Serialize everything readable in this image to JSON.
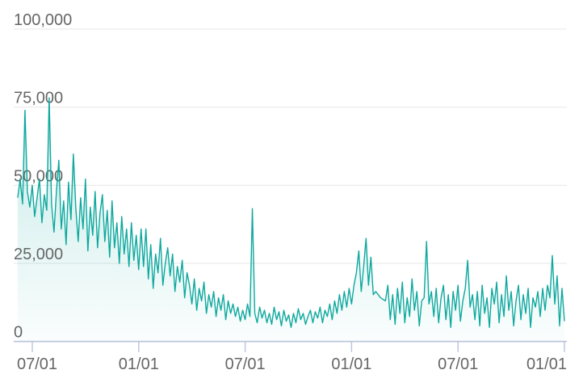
{
  "chart_data": {
    "type": "area",
    "title": "",
    "xlabel": "",
    "ylabel": "",
    "legend": "none",
    "grid": true,
    "ylim": [
      0,
      100000
    ],
    "y_tick_values": [
      0,
      25000,
      50000,
      75000,
      100000
    ],
    "y_tick_labels": [
      "0",
      "25,000",
      "50,000",
      "75,000",
      "100,000"
    ],
    "x_tick_labels": [
      "07/01",
      "01/01",
      "07/01",
      "01/01",
      "07/01",
      "01/01"
    ],
    "x_tick_interval_months": 6,
    "x_domain_ticks": [
      -0.137,
      5.0
    ],
    "colors": {
      "line": "#0ea89e",
      "fill_top": "rgba(14,168,158,0.30)",
      "fill_bottom": "rgba(14,168,158,0.02)",
      "grid": "#e7e7e7",
      "axis": "#b9c3dc",
      "tick_label": "#666666"
    },
    "series": [
      {
        "name": "daily-values",
        "values": [
          46000,
          52000,
          44000,
          74000,
          48000,
          43000,
          50000,
          40000,
          46000,
          52000,
          38000,
          47000,
          42000,
          78000,
          44000,
          35000,
          48000,
          58000,
          36000,
          45000,
          31000,
          51000,
          39000,
          60000,
          43000,
          32000,
          46000,
          36000,
          52000,
          29000,
          43000,
          34000,
          48000,
          30000,
          41000,
          47000,
          32000,
          42000,
          27000,
          45000,
          30000,
          38000,
          25000,
          40000,
          28000,
          36000,
          24000,
          38000,
          26000,
          34000,
          23000,
          36000,
          24000,
          36000,
          20000,
          31000,
          17000,
          28000,
          22000,
          33000,
          18000,
          25000,
          30000,
          21000,
          28000,
          16000,
          24000,
          19000,
          26000,
          14000,
          22000,
          18000,
          12000,
          20000,
          10000,
          17000,
          13000,
          19000,
          9000,
          15000,
          11000,
          16000,
          8000,
          14000,
          10000,
          15000,
          7000,
          13000,
          9000,
          12000,
          8000,
          11000,
          6500,
          10000,
          7000,
          12000,
          8000,
          42500,
          9000,
          6000,
          11000,
          7500,
          10000,
          6000,
          9000,
          5500,
          11000,
          7000,
          9500,
          5000,
          10000,
          6500,
          8500,
          4500,
          9000,
          6000,
          10500,
          7000,
          9000,
          5500,
          8000,
          10000,
          6000,
          9500,
          7500,
          11000,
          6000,
          10000,
          8000,
          12000,
          7000,
          13000,
          9000,
          15000,
          10000,
          16000,
          11000,
          17000,
          12000,
          18000,
          22000,
          29000,
          16000,
          24000,
          33000,
          18000,
          27000,
          15000,
          16000,
          15000,
          14000,
          13500,
          13000,
          18000,
          7000,
          15000,
          5500,
          17000,
          9000,
          19000,
          6000,
          14000,
          8000,
          20000,
          10000,
          16000,
          5000,
          13000,
          14000,
          32000,
          12000,
          16000,
          8000,
          17000,
          6000,
          14000,
          18000,
          7000,
          15000,
          4500,
          16000,
          10000,
          18000,
          6500,
          13000,
          17000,
          26000,
          11000,
          15000,
          7000,
          16000,
          5000,
          18000,
          9000,
          14000,
          4500,
          17000,
          12000,
          19000,
          6000,
          15000,
          8000,
          21000,
          10000,
          16000,
          5000,
          13000,
          18000,
          7000,
          15000,
          9000,
          17000,
          4500,
          14000,
          11000,
          16000,
          8000,
          17000,
          10000,
          18000,
          14000,
          27500,
          12000,
          21000,
          5000,
          17000,
          6500
        ]
      }
    ]
  }
}
